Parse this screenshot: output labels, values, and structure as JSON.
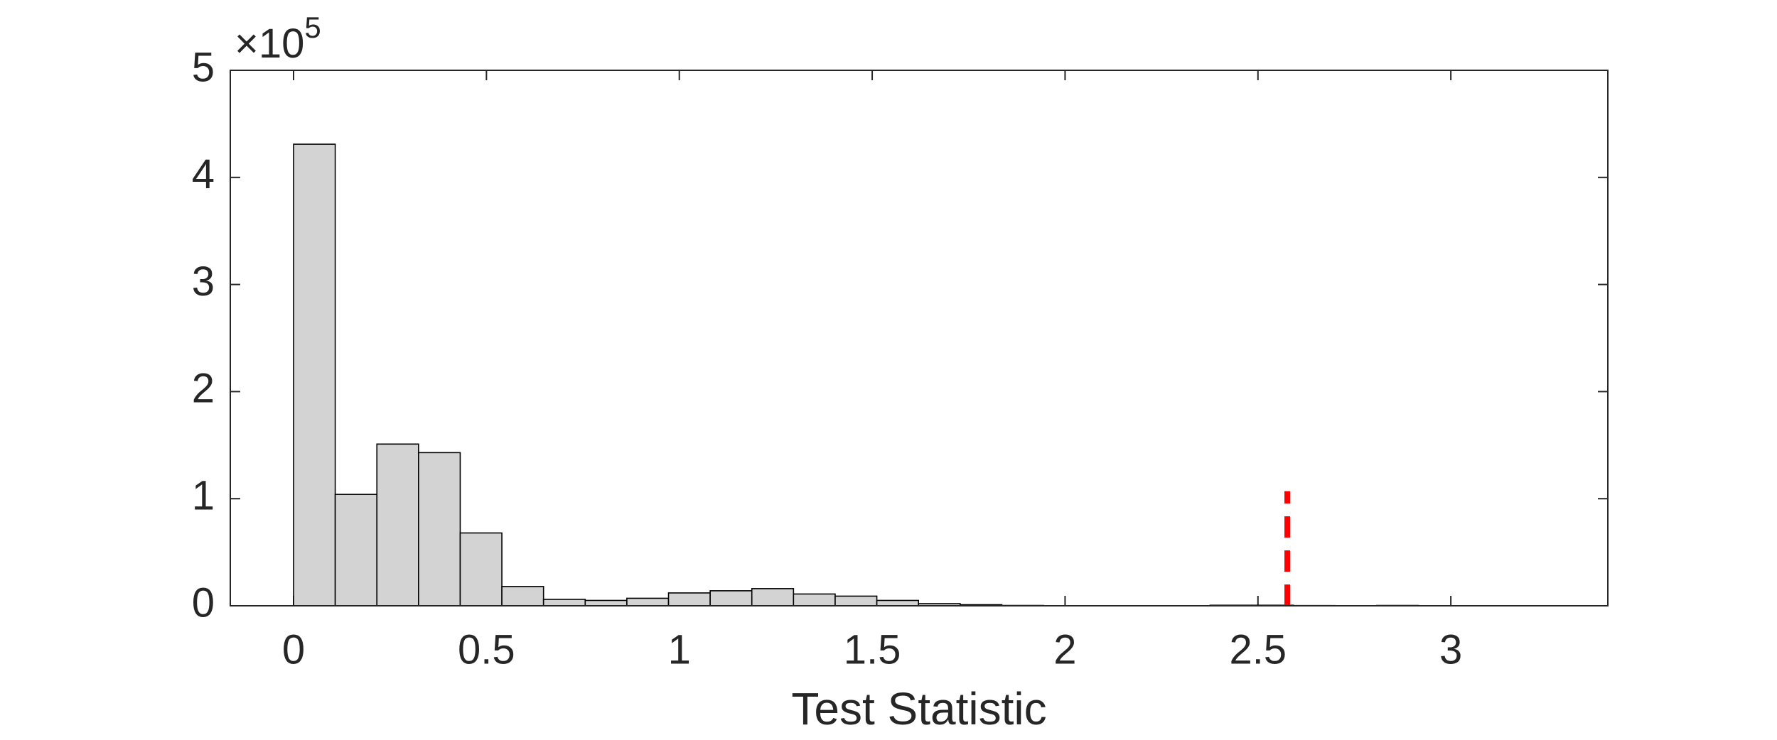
{
  "chart_data": {
    "type": "histogram",
    "xlabel": "Test Statistic",
    "y_multiplier": {
      "base": "×10",
      "exponent": "5"
    },
    "bins": [
      0,
      0.108,
      0.216,
      0.324,
      0.432,
      0.54,
      0.648,
      0.756,
      0.864,
      0.972,
      1.08,
      1.188,
      1.296,
      1.404,
      1.512,
      1.62,
      1.728,
      1.836,
      1.944,
      2.052,
      2.16,
      2.268,
      2.376,
      2.484,
      2.592,
      2.7,
      2.808,
      2.916,
      3.024,
      3.132,
      3.24
    ],
    "values": [
      431000,
      104000,
      151000,
      143000,
      68000,
      18000,
      6000,
      5000,
      7000,
      12000,
      14000,
      16000,
      11000,
      9000,
      5000,
      2000,
      1000,
      300,
      100,
      100,
      100,
      100,
      500,
      500,
      200,
      100,
      300,
      100,
      100,
      100
    ],
    "color": "#d3d3d3",
    "edgecolor": "#000000",
    "xlim": [
      -0.164,
      3.407
    ],
    "xticks": [
      0,
      0.5,
      1,
      1.5,
      2,
      2.5,
      3
    ],
    "ylim": [
      0,
      500000
    ],
    "yticks": [
      {
        "value": 0,
        "label": "0"
      },
      {
        "value": 100000,
        "label": "1"
      },
      {
        "value": 200000,
        "label": "2"
      },
      {
        "value": 300000,
        "label": "3"
      },
      {
        "value": 400000,
        "label": "4"
      },
      {
        "value": 500000,
        "label": "5"
      }
    ],
    "reference_line": {
      "x": 2.576,
      "y_top": 107000,
      "color": "#ff0000"
    },
    "grid": false
  }
}
